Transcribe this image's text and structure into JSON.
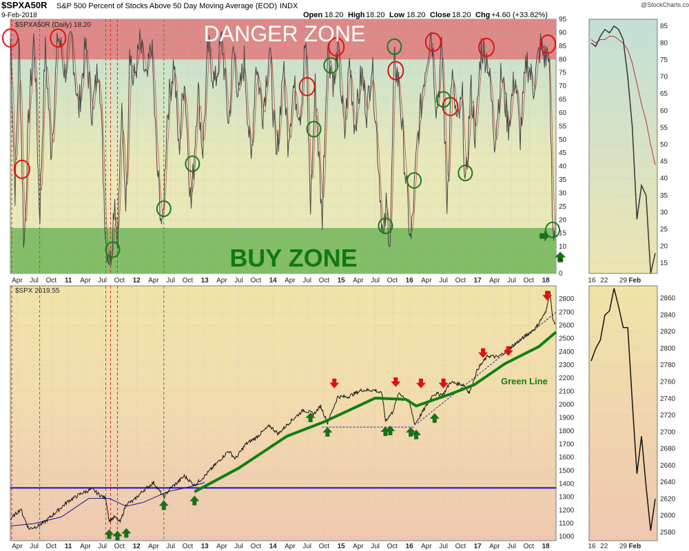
{
  "header": {
    "symbol": "$SPXA50R",
    "description": "S&P 500 Percent of Stocks Above 50 Day Moving Average (EOD)",
    "exchange": "INDX",
    "date": "9-Feb-2018",
    "open_label": "Open",
    "open": "18.20",
    "high_label": "High",
    "high": "18.20",
    "low_label": "Low",
    "low": "18.20",
    "close_label": "Close",
    "close": "18.20",
    "chg_label": "Chg",
    "chg": "+4.60 (+33.82%)",
    "brand": "@StockCharts.com"
  },
  "colors": {
    "danger": "#e08080",
    "buy": "#7dbb63",
    "price": "#111111",
    "ma": "#b03030",
    "green_line": "#108010",
    "support": "#1010d0",
    "red_arrow": "#e01010",
    "green_arrow": "#1a6f1a",
    "circle_red": "#e01010",
    "circle_green": "#1a7a1a"
  },
  "chart_data": [
    {
      "id": "breadth",
      "type": "line",
      "title": "$SPXA50R (Daily) 18.20",
      "ylim": [
        0,
        95
      ],
      "yticks": [
        0,
        5,
        10,
        15,
        20,
        25,
        30,
        35,
        40,
        45,
        50,
        55,
        60,
        65,
        70,
        75,
        80,
        85,
        90,
        95
      ],
      "zones": [
        {
          "name": "danger",
          "label": "DANGER ZONE",
          "from": 80,
          "to": 95
        },
        {
          "name": "buy",
          "label": "BUY ZONE",
          "from": 0,
          "to": 17
        }
      ],
      "xlim": [
        2010.15,
        2018.15
      ],
      "x_ticks": [
        {
          "label": "Apr",
          "t": 2010.25
        },
        {
          "label": "Jul",
          "t": 2010.5
        },
        {
          "label": "Oct",
          "t": 2010.75
        },
        {
          "label": "11",
          "t": 2011.0
        },
        {
          "label": "Apr",
          "t": 2011.25
        },
        {
          "label": "Jul",
          "t": 2011.5
        },
        {
          "label": "Oct",
          "t": 2011.75
        },
        {
          "label": "12",
          "t": 2012.0
        },
        {
          "label": "Apr",
          "t": 2012.25
        },
        {
          "label": "Jul",
          "t": 2012.5
        },
        {
          "label": "Oct",
          "t": 2012.75
        },
        {
          "label": "13",
          "t": 2013.0
        },
        {
          "label": "Apr",
          "t": 2013.25
        },
        {
          "label": "Jul",
          "t": 2013.5
        },
        {
          "label": "Oct",
          "t": 2013.75
        },
        {
          "label": "14",
          "t": 2014.0
        },
        {
          "label": "Apr",
          "t": 2014.25
        },
        {
          "label": "Jul",
          "t": 2014.5
        },
        {
          "label": "Oct",
          "t": 2014.75
        },
        {
          "label": "15",
          "t": 2015.0
        },
        {
          "label": "Apr",
          "t": 2015.25
        },
        {
          "label": "Jul",
          "t": 2015.5
        },
        {
          "label": "Oct",
          "t": 2015.75
        },
        {
          "label": "16",
          "t": 2016.0
        },
        {
          "label": "Apr",
          "t": 2016.25
        },
        {
          "label": "Jul",
          "t": 2016.5
        },
        {
          "label": "Oct",
          "t": 2016.75
        },
        {
          "label": "17",
          "t": 2017.0
        },
        {
          "label": "Apr",
          "t": 2017.25
        },
        {
          "label": "Jul",
          "t": 2017.5
        },
        {
          "label": "Oct",
          "t": 2017.75
        },
        {
          "label": "18",
          "t": 2018.0
        }
      ],
      "series_keypoints": [
        [
          2010.15,
          88
        ],
        [
          2010.22,
          30
        ],
        [
          2010.28,
          88
        ],
        [
          2010.35,
          8
        ],
        [
          2010.42,
          60
        ],
        [
          2010.5,
          90
        ],
        [
          2010.58,
          20
        ],
        [
          2010.66,
          85
        ],
        [
          2010.75,
          45
        ],
        [
          2010.85,
          90
        ],
        [
          2010.95,
          75
        ],
        [
          2011.05,
          88
        ],
        [
          2011.15,
          60
        ],
        [
          2011.25,
          85
        ],
        [
          2011.35,
          60
        ],
        [
          2011.45,
          80
        ],
        [
          2011.55,
          12
        ],
        [
          2011.62,
          4
        ],
        [
          2011.68,
          30
        ],
        [
          2011.72,
          10
        ],
        [
          2011.78,
          60
        ],
        [
          2011.85,
          25
        ],
        [
          2011.9,
          88
        ],
        [
          2011.95,
          70
        ],
        [
          2012.05,
          86
        ],
        [
          2012.15,
          70
        ],
        [
          2012.22,
          87
        ],
        [
          2012.3,
          40
        ],
        [
          2012.38,
          15
        ],
        [
          2012.45,
          60
        ],
        [
          2012.55,
          80
        ],
        [
          2012.62,
          45
        ],
        [
          2012.7,
          75
        ],
        [
          2012.8,
          24
        ],
        [
          2012.9,
          70
        ],
        [
          2012.97,
          45
        ],
        [
          2013.05,
          85
        ],
        [
          2013.15,
          70
        ],
        [
          2013.25,
          88
        ],
        [
          2013.35,
          55
        ],
        [
          2013.42,
          85
        ],
        [
          2013.5,
          65
        ],
        [
          2013.58,
          80
        ],
        [
          2013.68,
          40
        ],
        [
          2013.75,
          80
        ],
        [
          2013.85,
          60
        ],
        [
          2013.95,
          85
        ],
        [
          2014.05,
          40
        ],
        [
          2014.15,
          78
        ],
        [
          2014.22,
          50
        ],
        [
          2014.3,
          70
        ],
        [
          2014.4,
          60
        ],
        [
          2014.48,
          88
        ],
        [
          2014.55,
          25
        ],
        [
          2014.62,
          70
        ],
        [
          2014.72,
          20
        ],
        [
          2014.8,
          85
        ],
        [
          2014.9,
          70
        ],
        [
          2014.95,
          86
        ],
        [
          2015.05,
          50
        ],
        [
          2015.12,
          80
        ],
        [
          2015.2,
          55
        ],
        [
          2015.3,
          75
        ],
        [
          2015.38,
          60
        ],
        [
          2015.45,
          80
        ],
        [
          2015.55,
          40
        ],
        [
          2015.62,
          10
        ],
        [
          2015.66,
          25
        ],
        [
          2015.72,
          12
        ],
        [
          2015.78,
          80
        ],
        [
          2015.85,
          70
        ],
        [
          2015.92,
          45
        ],
        [
          2016.02,
          10
        ],
        [
          2016.12,
          50
        ],
        [
          2016.22,
          75
        ],
        [
          2016.32,
          92
        ],
        [
          2016.4,
          60
        ],
        [
          2016.48,
          85
        ],
        [
          2016.55,
          25
        ],
        [
          2016.62,
          75
        ],
        [
          2016.7,
          55
        ],
        [
          2016.78,
          65
        ],
        [
          2016.82,
          28
        ],
        [
          2016.9,
          70
        ],
        [
          2016.97,
          50
        ],
        [
          2017.05,
          85
        ],
        [
          2017.15,
          80
        ],
        [
          2017.25,
          50
        ],
        [
          2017.35,
          75
        ],
        [
          2017.45,
          55
        ],
        [
          2017.55,
          75
        ],
        [
          2017.62,
          50
        ],
        [
          2017.72,
          80
        ],
        [
          2017.82,
          70
        ],
        [
          2017.92,
          85
        ],
        [
          2018.0,
          80
        ],
        [
          2018.04,
          85
        ],
        [
          2018.08,
          45
        ],
        [
          2018.1,
          14
        ],
        [
          2018.14,
          18
        ]
      ],
      "annotations_red_circles": [
        2010.15,
        2010.32,
        2010.85,
        2014.5,
        2014.93,
        2015.8,
        2016.35,
        2016.6,
        2017.13,
        2018.03
      ],
      "annotations_green_circles": [
        2011.65,
        2012.4,
        2012.82,
        2014.6,
        2014.85,
        2015.65,
        2015.78,
        2016.07,
        2016.5,
        2016.82,
        2018.1
      ],
      "zoom": {
        "x_ticks": [
          {
            "label": "16",
            "t": 0.04
          },
          {
            "label": "22",
            "t": 0.22
          },
          {
            "label": "29",
            "t": 0.5
          },
          {
            "label": "Feb",
            "t": 0.67
          }
        ],
        "yticks": [
          15,
          20,
          25,
          30,
          35,
          40,
          45,
          50,
          55,
          60,
          65,
          70,
          75,
          80,
          85
        ],
        "ylim": [
          12,
          87
        ],
        "values": [
          80,
          79,
          82,
          84,
          83,
          85,
          84,
          81,
          70,
          55,
          28,
          38,
          35,
          12,
          18
        ],
        "ma": [
          81,
          80,
          81,
          81,
          82,
          82,
          81,
          80,
          78,
          74,
          68,
          62,
          57,
          50,
          44
        ]
      }
    },
    {
      "id": "price",
      "type": "line",
      "title": "$SPX 2619.55",
      "ylim": [
        970,
        2900
      ],
      "yticks": [
        1000,
        1100,
        1200,
        1300,
        1400,
        1500,
        1600,
        1700,
        1800,
        1900,
        2000,
        2100,
        2200,
        2300,
        2400,
        2500,
        2600,
        2700,
        2800
      ],
      "series_keypoints": [
        [
          2010.15,
          1130
        ],
        [
          2010.3,
          1210
        ],
        [
          2010.42,
          1060
        ],
        [
          2010.55,
          1080
        ],
        [
          2010.65,
          1110
        ],
        [
          2010.85,
          1200
        ],
        [
          2011.0,
          1270
        ],
        [
          2011.2,
          1330
        ],
        [
          2011.35,
          1360
        ],
        [
          2011.45,
          1320
        ],
        [
          2011.55,
          1290
        ],
        [
          2011.6,
          1120
        ],
        [
          2011.68,
          1150
        ],
        [
          2011.76,
          1110
        ],
        [
          2011.85,
          1250
        ],
        [
          2011.95,
          1270
        ],
        [
          2012.1,
          1350
        ],
        [
          2012.25,
          1410
        ],
        [
          2012.4,
          1300
        ],
        [
          2012.5,
          1370
        ],
        [
          2012.6,
          1410
        ],
        [
          2012.7,
          1460
        ],
        [
          2012.85,
          1390
        ],
        [
          2013.0,
          1460
        ],
        [
          2013.2,
          1570
        ],
        [
          2013.35,
          1650
        ],
        [
          2013.45,
          1590
        ],
        [
          2013.6,
          1700
        ],
        [
          2013.75,
          1750
        ],
        [
          2013.95,
          1840
        ],
        [
          2014.08,
          1780
        ],
        [
          2014.25,
          1870
        ],
        [
          2014.45,
          1960
        ],
        [
          2014.6,
          1930
        ],
        [
          2014.7,
          1990
        ],
        [
          2014.8,
          1860
        ],
        [
          2014.95,
          2060
        ],
        [
          2015.1,
          2060
        ],
        [
          2015.3,
          2110
        ],
        [
          2015.5,
          2110
        ],
        [
          2015.6,
          2080
        ],
        [
          2015.65,
          1880
        ],
        [
          2015.75,
          1940
        ],
        [
          2015.85,
          2090
        ],
        [
          2016.0,
          2020
        ],
        [
          2016.08,
          1850
        ],
        [
          2016.2,
          1950
        ],
        [
          2016.35,
          2080
        ],
        [
          2016.5,
          2080
        ],
        [
          2016.6,
          2170
        ],
        [
          2016.8,
          2150
        ],
        [
          2016.88,
          2090
        ],
        [
          2017.0,
          2270
        ],
        [
          2017.15,
          2370
        ],
        [
          2017.3,
          2360
        ],
        [
          2017.5,
          2440
        ],
        [
          2017.7,
          2520
        ],
        [
          2017.85,
          2580
        ],
        [
          2018.0,
          2700
        ],
        [
          2018.06,
          2870
        ],
        [
          2018.1,
          2640
        ],
        [
          2018.14,
          2619
        ]
      ],
      "ma200_keypoints": [
        [
          2010.15,
          1080
        ],
        [
          2010.5,
          1100
        ],
        [
          2010.9,
          1150
        ],
        [
          2011.3,
          1290
        ],
        [
          2011.6,
          1290
        ],
        [
          2011.85,
          1230
        ],
        [
          2012.1,
          1260
        ],
        [
          2012.45,
          1340
        ],
        [
          2012.8,
          1380
        ],
        [
          2013.0,
          1410
        ]
      ],
      "green_line": {
        "label": "Green Line",
        "points": [
          [
            2012.85,
            1340
          ],
          [
            2013.5,
            1520
          ],
          [
            2014.2,
            1760
          ],
          [
            2014.75,
            1870
          ],
          [
            2015.5,
            2050
          ],
          [
            2015.95,
            2040
          ],
          [
            2016.1,
            1990
          ],
          [
            2016.6,
            2080
          ],
          [
            2016.95,
            2150
          ],
          [
            2017.4,
            2310
          ],
          [
            2017.9,
            2440
          ],
          [
            2018.15,
            2550
          ]
        ]
      },
      "support_line": {
        "value": 1370
      },
      "dotted_support": {
        "points": [
          [
            2014.72,
            1830
          ],
          [
            2016.08,
            1830
          ]
        ]
      },
      "dotted_trend": {
        "points": [
          [
            2016.12,
            1860
          ],
          [
            2018.15,
            2700
          ]
        ]
      },
      "vertical_red_lines": [
        2010.17,
        2011.62,
        2011.72
      ],
      "vertical_green_lines": [
        2010.58,
        2011.55,
        2012.4
      ],
      "red_arrows": [
        [
          2014.9,
          2145
        ],
        [
          2015.8,
          2155
        ],
        [
          2016.17,
          2145
        ],
        [
          2016.5,
          2145
        ],
        [
          2017.08,
          2375
        ],
        [
          2017.45,
          2390
        ],
        [
          2018.02,
          2810
        ]
      ],
      "green_arrows": [
        [
          2011.6,
          1035
        ],
        [
          2011.72,
          1025
        ],
        [
          2011.85,
          1045
        ],
        [
          2012.4,
          1255
        ],
        [
          2012.85,
          1290
        ],
        [
          2014.55,
          1920
        ],
        [
          2014.8,
          1810
        ],
        [
          2015.65,
          1815
        ],
        [
          2015.72,
          1820
        ],
        [
          2016.02,
          1810
        ],
        [
          2016.1,
          1790
        ],
        [
          2016.37,
          1915
        ]
      ],
      "zoom": {
        "x_ticks": [
          {
            "label": "16",
            "t": 0.04
          },
          {
            "label": "22",
            "t": 0.22
          },
          {
            "label": "29",
            "t": 0.5
          },
          {
            "label": "Feb",
            "t": 0.67
          }
        ],
        "yticks": [
          2580,
          2600,
          2620,
          2640,
          2660,
          2680,
          2700,
          2720,
          2740,
          2760,
          2780,
          2800,
          2820,
          2840,
          2860
        ],
        "ylim": [
          2570,
          2875
        ],
        "values": [
          2785,
          2800,
          2810,
          2840,
          2845,
          2872,
          2850,
          2825,
          2825,
          2735,
          2650,
          2695,
          2635,
          2582,
          2620
        ]
      }
    }
  ]
}
